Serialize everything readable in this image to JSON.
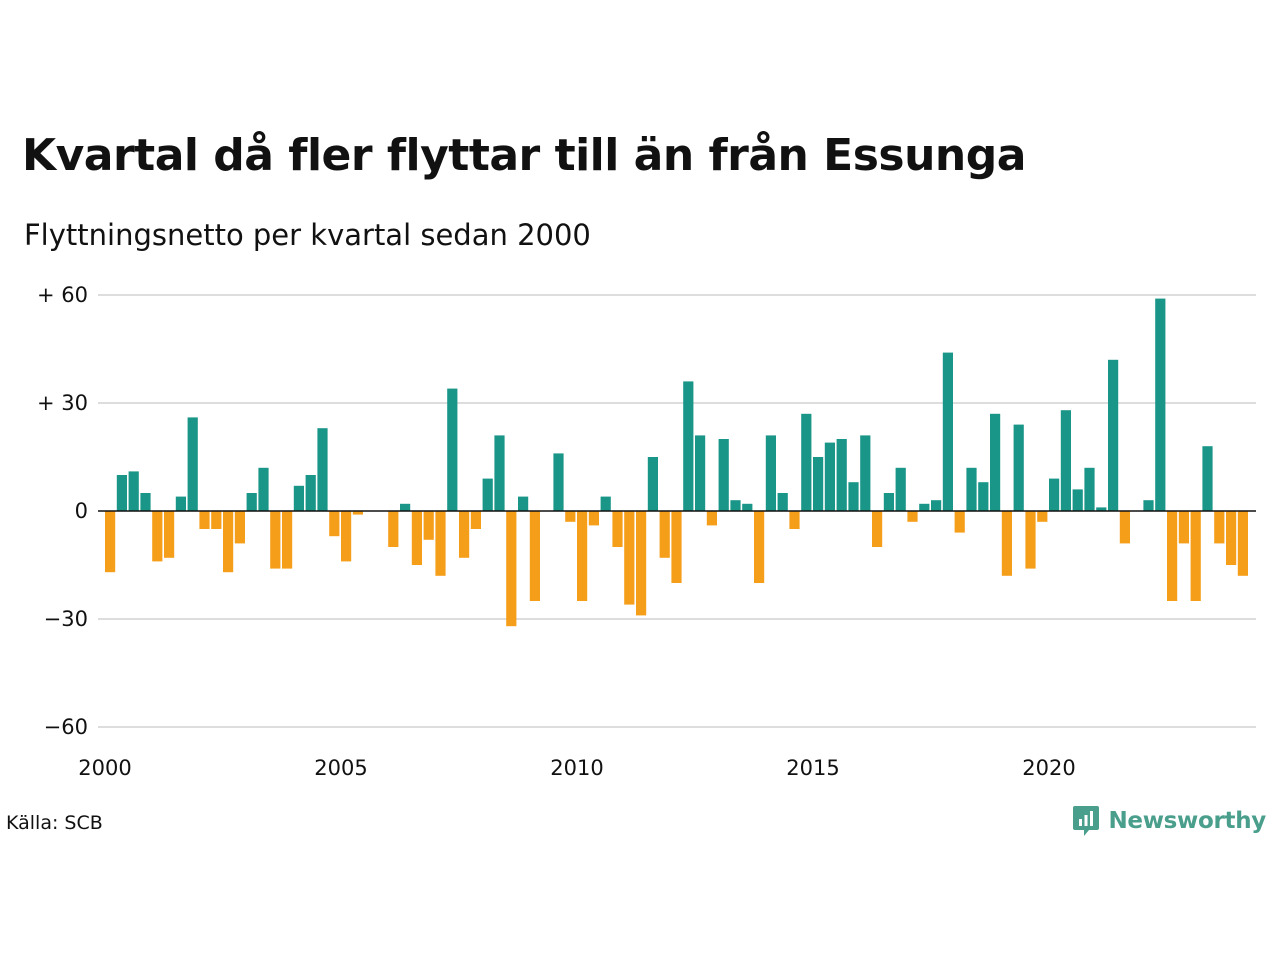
{
  "title": "Kvartal då fler flyttar till än från Essunga",
  "subtitle": "Flyttningsnetto per kvartal sedan 2000",
  "source": "Källa: SCB",
  "brand": {
    "name": "Newsworthy",
    "icon": "newsworthy-logo-icon",
    "color": "#4a9e8c"
  },
  "colors": {
    "positive": "#1a9688",
    "negative": "#f59e1a",
    "grid": "#dddddd",
    "zero_line": "#111111"
  },
  "chart_data": {
    "type": "bar",
    "title": "Kvartal då fler flyttar till än från Essunga",
    "subtitle": "Flyttningsnetto per kvartal sedan 2000",
    "xlabel": "",
    "ylabel": "",
    "ylim": [
      -60,
      60
    ],
    "x_range": [
      2000,
      2024.25
    ],
    "yticks": [
      {
        "value": 60,
        "label": "+ 60"
      },
      {
        "value": 30,
        "label": "+ 30"
      },
      {
        "value": 0,
        "label": "0"
      },
      {
        "value": -30,
        "label": "−30"
      },
      {
        "value": -60,
        "label": "−60"
      }
    ],
    "xticks": [
      {
        "value": 2000,
        "label": "2000"
      },
      {
        "value": 2005,
        "label": "2005"
      },
      {
        "value": 2010,
        "label": "2010"
      },
      {
        "value": 2015,
        "label": "2015"
      },
      {
        "value": 2020,
        "label": "2020"
      }
    ],
    "grid": true,
    "legend": "none",
    "start_quarter": "2000 Q1",
    "values": [
      -17,
      10,
      11,
      5,
      -14,
      -13,
      4,
      26,
      -5,
      -5,
      -17,
      -9,
      5,
      12,
      -16,
      -16,
      7,
      10,
      23,
      -7,
      -14,
      -1,
      0,
      0,
      -10,
      2,
      -15,
      -8,
      -18,
      34,
      -13,
      -5,
      9,
      21,
      -32,
      4,
      -25,
      0,
      16,
      -3,
      -25,
      -4,
      4,
      -10,
      -26,
      -29,
      15,
      -13,
      -20,
      36,
      21,
      -4,
      20,
      3,
      2,
      -20,
      21,
      5,
      -5,
      27,
      15,
      19,
      20,
      8,
      21,
      -10,
      5,
      12,
      -3,
      2,
      3,
      44,
      -6,
      12,
      8,
      27,
      -18,
      24,
      -16,
      -3,
      9,
      28,
      6,
      12,
      1,
      42,
      -9,
      0,
      3,
      59,
      -25,
      -9,
      -25,
      18,
      -9,
      -15,
      -18
    ]
  }
}
